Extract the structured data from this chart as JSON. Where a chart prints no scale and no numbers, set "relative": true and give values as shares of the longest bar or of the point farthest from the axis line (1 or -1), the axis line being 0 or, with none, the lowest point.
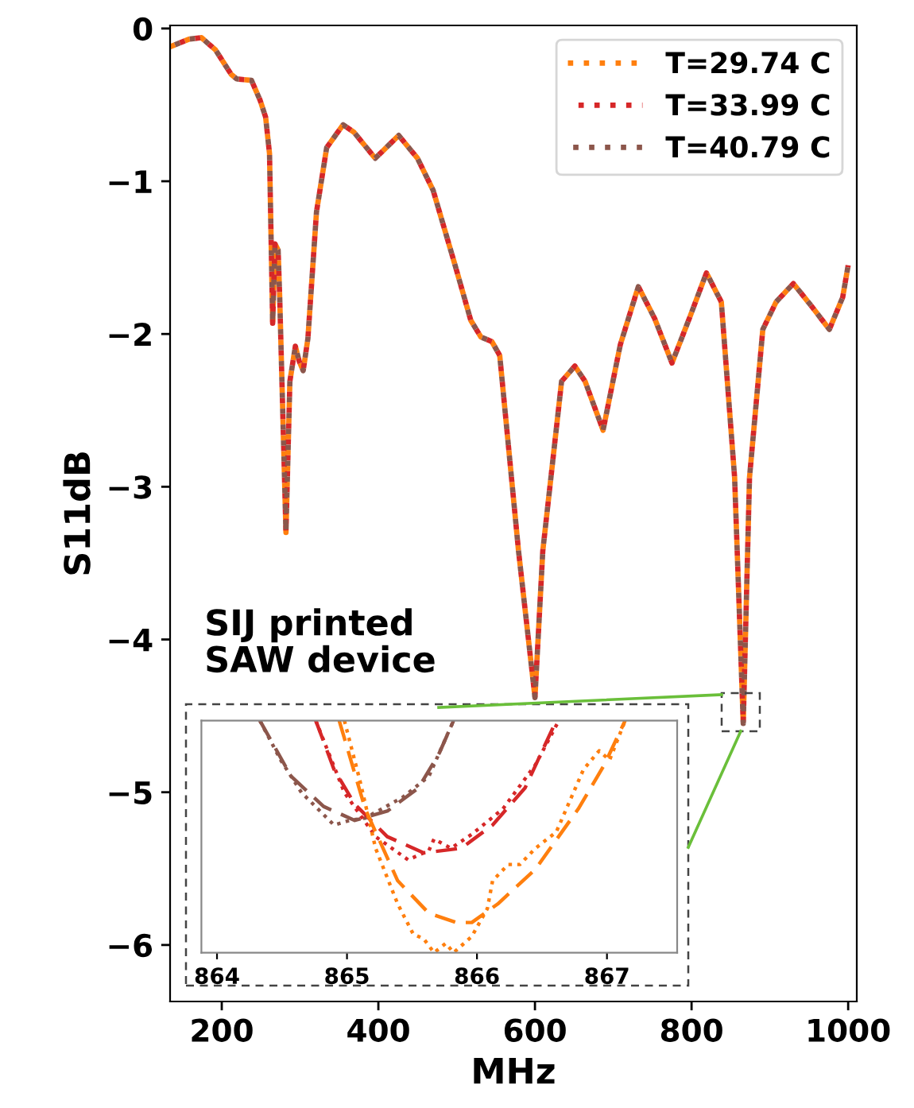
{
  "chart_data": [
    {
      "type": "line",
      "xlabel": "MHz",
      "ylabel": "S11dB",
      "xlim": [
        134,
        1011
      ],
      "ylim": [
        -6.37,
        0.02
      ],
      "xticks": [
        200,
        400,
        600,
        800,
        1000
      ],
      "yticks": [
        0,
        {
          "value": -1,
          "label": "−1"
        },
        {
          "value": -2,
          "label": "−2"
        },
        {
          "value": -3,
          "label": "−3"
        },
        {
          "value": -4,
          "label": "−4"
        },
        {
          "value": -5,
          "label": "−5"
        },
        {
          "value": -6,
          "label": "−6"
        }
      ],
      "grid": false,
      "legend": "top right",
      "line_style": "dotted",
      "marker": "none",
      "annotations": [
        "SIJ printed\nSAW device"
      ],
      "x": [
        134,
        158,
        174,
        192,
        212,
        219,
        238,
        249,
        256,
        261,
        265,
        268,
        272,
        274,
        282,
        287,
        294,
        299,
        304,
        310,
        321,
        334,
        355,
        369,
        396,
        426,
        450,
        470,
        498,
        518,
        531,
        545,
        555,
        579,
        600,
        610,
        634,
        651,
        664,
        687,
        709,
        732,
        753,
        775,
        797,
        819,
        838,
        855,
        866,
        874,
        891,
        908,
        930,
        952,
        976,
        993,
        1000
      ],
      "series": [
        {
          "name": "T=29.74 C",
          "color": "#ff7f0e",
          "values": [
            -0.12,
            -0.07,
            -0.06,
            -0.14,
            -0.3,
            -0.33,
            -0.34,
            -0.47,
            -0.58,
            -0.82,
            -1.93,
            -1.41,
            -1.45,
            -1.76,
            -3.3,
            -2.31,
            -2.08,
            -2.18,
            -2.24,
            -2.03,
            -1.2,
            -0.78,
            -0.63,
            -0.68,
            -0.85,
            -0.7,
            -0.85,
            -1.06,
            -1.55,
            -1.91,
            -2.02,
            -2.05,
            -2.14,
            -3.42,
            -4.38,
            -3.42,
            -2.31,
            -2.21,
            -2.31,
            -2.63,
            -2.07,
            -1.69,
            -1.9,
            -2.19,
            -1.9,
            -1.6,
            -1.79,
            -2.94,
            -4.55,
            -2.94,
            -1.97,
            -1.79,
            -1.67,
            -1.81,
            -1.97,
            -1.76,
            -1.55
          ]
        },
        {
          "name": "T=33.99 C",
          "color": "#d62728",
          "values": [
            -0.12,
            -0.07,
            -0.06,
            -0.14,
            -0.3,
            -0.33,
            -0.34,
            -0.47,
            -0.58,
            -0.82,
            -1.93,
            -1.41,
            -1.45,
            -1.76,
            -3.3,
            -2.31,
            -2.08,
            -2.18,
            -2.24,
            -2.03,
            -1.2,
            -0.78,
            -0.63,
            -0.68,
            -0.85,
            -0.7,
            -0.85,
            -1.06,
            -1.55,
            -1.91,
            -2.02,
            -2.05,
            -2.14,
            -3.42,
            -4.38,
            -3.42,
            -2.31,
            -2.21,
            -2.31,
            -2.63,
            -2.07,
            -1.69,
            -1.9,
            -2.19,
            -1.9,
            -1.6,
            -1.79,
            -2.94,
            -4.55,
            -2.94,
            -1.97,
            -1.79,
            -1.67,
            -1.81,
            -1.97,
            -1.76,
            -1.55
          ]
        },
        {
          "name": "T=40.79 C",
          "color": "#8c564b",
          "values": [
            -0.12,
            -0.07,
            -0.06,
            -0.14,
            -0.3,
            -0.33,
            -0.34,
            -0.47,
            -0.58,
            -0.82,
            -1.93,
            -1.41,
            -1.45,
            -1.76,
            -3.3,
            -2.31,
            -2.08,
            -2.18,
            -2.24,
            -2.03,
            -1.2,
            -0.78,
            -0.63,
            -0.68,
            -0.85,
            -0.7,
            -0.85,
            -1.06,
            -1.55,
            -1.91,
            -2.02,
            -2.05,
            -2.14,
            -3.42,
            -4.38,
            -3.42,
            -2.31,
            -2.21,
            -2.31,
            -2.63,
            -2.07,
            -1.69,
            -1.9,
            -2.19,
            -1.9,
            -1.6,
            -1.79,
            -2.94,
            -4.55,
            -2.94,
            -1.97,
            -1.79,
            -1.67,
            -1.81,
            -1.97,
            -1.76,
            -1.55
          ]
        }
      ]
    },
    {
      "type": "line",
      "relative": true,
      "xlim": [
        863.88,
        867.54
      ],
      "xticks": [
        864,
        865,
        866,
        867
      ],
      "tick_labels": "x",
      "grid": false,
      "legend": false,
      "marker": "none",
      "series": [
        {
          "color": "#8c564b",
          "line_style": "dotted",
          "x": [
            864.33,
            864.49,
            864.65,
            864.9,
            865.02,
            865.14,
            865.43,
            865.63,
            865.82
          ],
          "values": [
            1.0,
            0.83,
            0.69,
            0.55,
            0.57,
            0.58,
            0.67,
            0.76,
            1.0
          ]
        },
        {
          "color": "#8c564b",
          "line_style": "dashed",
          "x": [
            864.33,
            864.57,
            864.82,
            865.06,
            865.31,
            865.55,
            865.71,
            865.82
          ],
          "values": [
            1.0,
            0.76,
            0.63,
            0.57,
            0.61,
            0.71,
            0.86,
            1.0
          ]
        },
        {
          "color": "#d62728",
          "line_style": "dotted",
          "x": [
            864.76,
            864.98,
            865.22,
            865.47,
            865.63,
            865.67,
            865.8,
            865.96,
            866.2,
            866.45,
            866.63
          ],
          "values": [
            1.0,
            0.69,
            0.5,
            0.4,
            0.44,
            0.49,
            0.45,
            0.51,
            0.62,
            0.81,
            1.0
          ]
        },
        {
          "color": "#d62728",
          "line_style": "dashed",
          "x": [
            864.76,
            864.9,
            865.06,
            865.31,
            865.59,
            865.88,
            866.12,
            866.37,
            866.61
          ],
          "values": [
            1.0,
            0.79,
            0.64,
            0.5,
            0.43,
            0.45,
            0.55,
            0.71,
            1.0
          ]
        },
        {
          "color": "#ff7f0e",
          "line_style": "dotted",
          "x": [
            864.98,
            865.1,
            865.22,
            865.39,
            865.51,
            865.59,
            865.67,
            865.76,
            865.82,
            865.96,
            866.08,
            866.12,
            866.24,
            866.33,
            866.45,
            866.61,
            866.82,
            866.94,
            867.02,
            867.14
          ],
          "values": [
            1.0,
            0.74,
            0.45,
            0.21,
            0.08,
            0.06,
            0.0,
            0.04,
            0.0,
            0.07,
            0.19,
            0.31,
            0.38,
            0.38,
            0.45,
            0.52,
            0.79,
            0.87,
            0.83,
            1.0
          ]
        },
        {
          "color": "#ff7f0e",
          "line_style": "dashed",
          "x": [
            864.94,
            865.14,
            865.39,
            865.63,
            865.84,
            865.96,
            866.16,
            866.45,
            866.78,
            866.98,
            867.14
          ],
          "values": [
            1.0,
            0.62,
            0.31,
            0.17,
            0.13,
            0.13,
            0.21,
            0.36,
            0.62,
            0.81,
            1.0
          ]
        }
      ]
    }
  ]
}
